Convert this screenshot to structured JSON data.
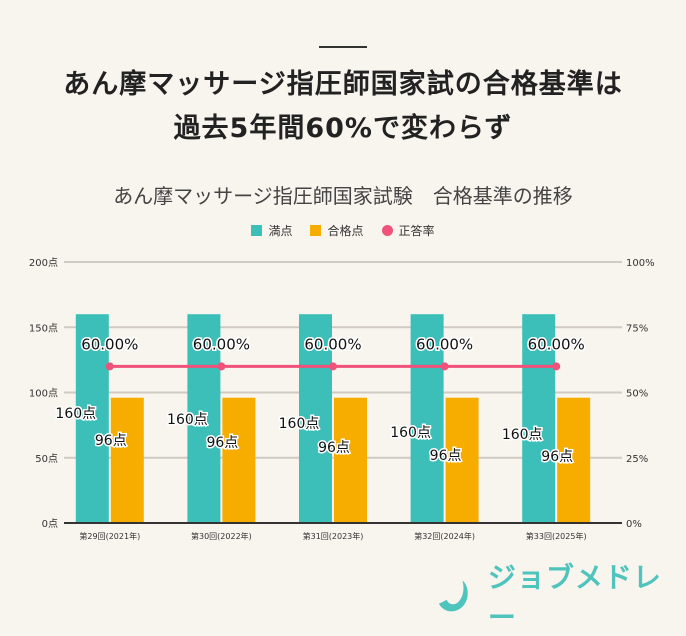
{
  "headline": {
    "line1": "あん摩マッサージ指圧師国家試の合格基準は",
    "line2": "過去5年間60%で変わらず"
  },
  "chart_data": {
    "type": "bar",
    "title": "あん摩マッサージ指圧師国家試験　合格基準の推移",
    "categories": [
      "第29回(2021年)",
      "第30回(2022年)",
      "第31回(2023年)",
      "第32回(2024年)",
      "第33回(2025年)"
    ],
    "series": [
      {
        "name": "満点",
        "type": "bar",
        "axis": "left",
        "color": "#3bbfb8",
        "values": [
          160,
          160,
          160,
          160,
          160
        ],
        "labels": [
          "160点",
          "160点",
          "160点",
          "160点",
          "160点"
        ]
      },
      {
        "name": "合格点",
        "type": "bar",
        "axis": "left",
        "color": "#f7ac00",
        "values": [
          96,
          96,
          96,
          96,
          96
        ],
        "labels": [
          "96点",
          "96点",
          "96点",
          "96点",
          "96点"
        ]
      },
      {
        "name": "正答率",
        "type": "line",
        "axis": "right",
        "color": "#f0527a",
        "values": [
          60,
          60,
          60,
          60,
          60
        ],
        "labels": [
          "60.00%",
          "60.00%",
          "60.00%",
          "60.00%",
          "60.00%"
        ]
      }
    ],
    "y_left": {
      "range": [
        0,
        200
      ],
      "ticks": [
        "0点",
        "50点",
        "100点",
        "150点",
        "200点"
      ]
    },
    "y_right": {
      "range": [
        0,
        100
      ],
      "ticks": [
        "0%",
        "25%",
        "50%",
        "75%",
        "100%"
      ]
    },
    "grid": true,
    "legend": "top-center"
  },
  "logo": {
    "text": "ジョブメドレー",
    "color": "#4fc4bc"
  }
}
